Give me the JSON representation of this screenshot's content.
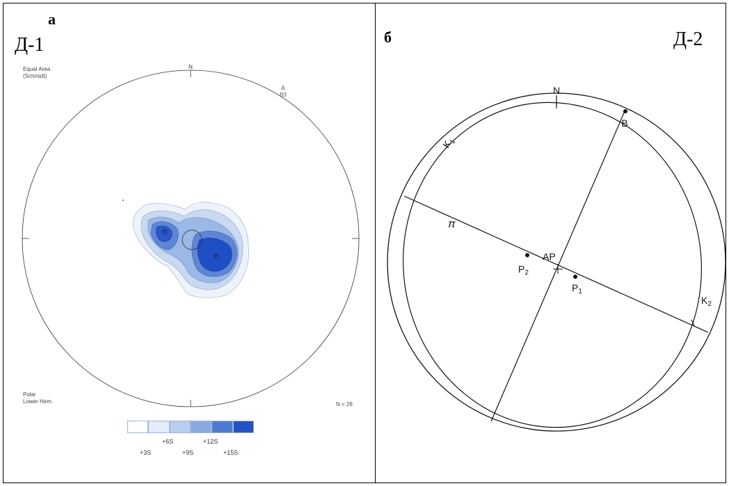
{
  "panel_a": {
    "letter": "а",
    "label": "Д-1",
    "net_label": [
      "Equal Area",
      "(Schmidt)"
    ],
    "north": "N",
    "marker": [
      "Δ",
      "B3"
    ],
    "projection_label": [
      "Polar",
      "Lower Hem."
    ],
    "count": "N = 26",
    "contour_peaks": [
      "П",
      "П"
    ],
    "legend_colors": [
      "#ffffff",
      "#e3ecf8",
      "#b9cdee",
      "#88a9e2",
      "#4f7ad3",
      "#2452c3"
    ],
    "legend_upper": [
      "+6S",
      "+12S"
    ],
    "legend_lower": [
      "+3S",
      "+9S",
      "+15S"
    ]
  },
  "panel_b": {
    "letter": "б",
    "label": "Д-2",
    "north": "N",
    "points": {
      "B": "B",
      "AP": "AP",
      "P1": "P",
      "P1_sub": "1",
      "P2": "P",
      "P2_sub": "2"
    },
    "circles": {
      "K1": "K",
      "K1_sub": "1",
      "K2": "K",
      "K2_sub": "2"
    },
    "line_label": "π"
  }
}
